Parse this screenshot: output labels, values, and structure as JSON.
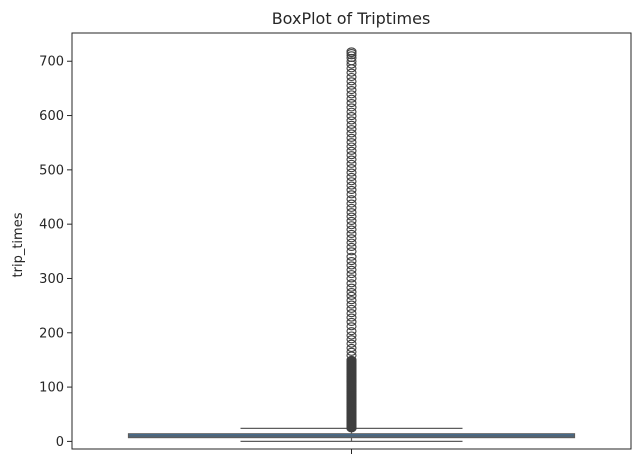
{
  "chart_data": {
    "type": "box",
    "title": "BoxPlot of Triptimes",
    "xlabel": "",
    "ylabel": "trip_times",
    "ylim": [
      -14,
      752
    ],
    "yticks": [
      0,
      100,
      200,
      300,
      400,
      500,
      600,
      700
    ],
    "grid": false,
    "box": {
      "whisker_low": 0,
      "q1": 7,
      "median": 10,
      "q3": 14,
      "whisker_high": 24,
      "fill_color": "#3a74a7",
      "edge_color": "#5c5c5c"
    },
    "outliers": {
      "dense_from": 24,
      "dense_to": 150,
      "values": [
        158,
        165,
        172,
        180,
        188,
        195,
        203,
        212,
        220,
        228,
        236,
        244,
        252,
        260,
        268,
        275,
        283,
        291,
        300,
        308,
        316,
        324,
        332,
        340,
        350,
        358,
        366,
        374,
        382,
        390,
        398,
        406,
        414,
        422,
        430,
        438,
        446,
        455,
        463,
        471,
        479,
        487,
        495,
        503,
        511,
        519,
        527,
        535,
        543,
        551,
        559,
        567,
        575,
        583,
        591,
        599,
        607,
        615,
        623,
        631,
        639,
        647,
        655,
        663,
        671,
        679,
        687,
        694,
        700,
        706,
        711,
        715,
        718
      ]
    }
  }
}
